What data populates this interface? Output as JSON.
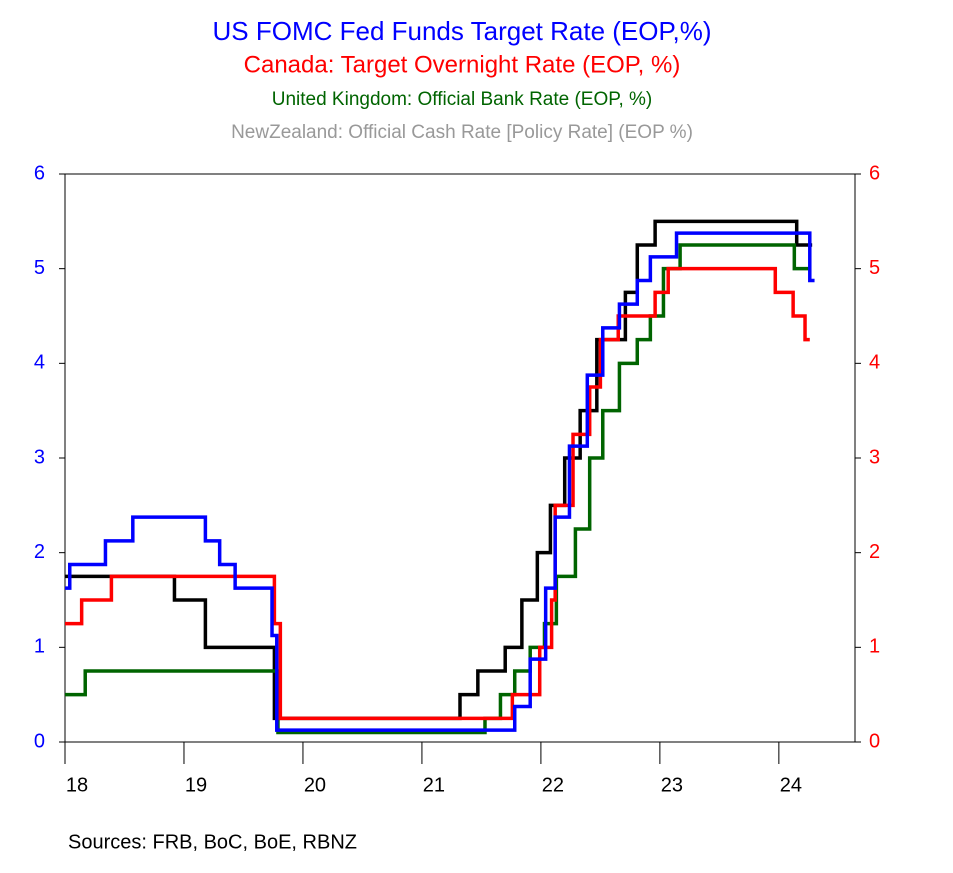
{
  "chart_data": {
    "type": "step-line",
    "source": "Sources:  FRB, BoC, BoE, RBNZ",
    "xlim": [
      2018,
      2024.64
    ],
    "xticks": [
      {
        "value": 2018,
        "label": "18"
      },
      {
        "value": 2019,
        "label": "19"
      },
      {
        "value": 2020,
        "label": "20"
      },
      {
        "value": 2021,
        "label": "21"
      },
      {
        "value": 2022,
        "label": "22"
      },
      {
        "value": 2023,
        "label": "23"
      },
      {
        "value": 2024,
        "label": "24"
      }
    ],
    "ylim": [
      0,
      6
    ],
    "yticks": [
      0,
      1,
      2,
      3,
      4,
      5,
      6
    ],
    "ytick_color": "#0000ff",
    "y2lim": [
      0,
      6
    ],
    "y2ticks": [
      0,
      1,
      2,
      3,
      4,
      5,
      6
    ],
    "y2tick_color": "#ff0000",
    "series": [
      {
        "name": "US FOMC Fed Funds Target Rate (EOP,%)",
        "color": "#0000ff",
        "label_color": "#0000ff",
        "x": [
          2018,
          2018.04,
          2018.34,
          2018.57,
          2019.18,
          2019.3,
          2019.43,
          2019.74,
          2019.78,
          2021.78,
          2021.91,
          2022.04,
          2022.12,
          2022.24,
          2022.39,
          2022.52,
          2022.66,
          2022.81,
          2022.92,
          2023.14,
          2024.26,
          2024.3
        ],
        "values": [
          1.625,
          1.875,
          2.125,
          2.375,
          2.125,
          1.875,
          1.625,
          1.125,
          0.125,
          0.375,
          0.875,
          1.625,
          2.375,
          3.125,
          3.875,
          4.375,
          4.625,
          4.875,
          5.125,
          5.375,
          4.875,
          4.875
        ]
      },
      {
        "name": "Canada: Target Overnight Rate (EOP, %)",
        "color": "#ff0000",
        "label_color": "#ff0000",
        "axis": "y2",
        "x": [
          2018,
          2018.14,
          2018.39,
          2019.76,
          2019.81,
          2021.76,
          2021.99,
          2022.09,
          2022.12,
          2022.27,
          2022.41,
          2022.5,
          2022.65,
          2022.96,
          2023.07,
          2023.97,
          2024.12,
          2024.22,
          2024.26
        ],
        "values": [
          1.25,
          1.5,
          1.75,
          1.25,
          0.25,
          0.5,
          1.0,
          1.5,
          2.5,
          3.25,
          3.75,
          4.25,
          4.5,
          4.75,
          5.0,
          4.75,
          4.5,
          4.25,
          4.25
        ]
      },
      {
        "name": "United Kingdom: Official Bank Rate (EOP, %)",
        "color": "#006400",
        "label_color": "#006400",
        "x": [
          2018,
          2018.17,
          2019.79,
          2021.53,
          2021.66,
          2021.78,
          2021.91,
          2022.03,
          2022.13,
          2022.29,
          2022.41,
          2022.52,
          2022.66,
          2022.81,
          2022.92,
          2023.03,
          2023.17,
          2024.13,
          2024.26
        ],
        "values": [
          0.5,
          0.75,
          0.1,
          0.25,
          0.5,
          0.75,
          1.0,
          1.25,
          1.75,
          2.25,
          3.0,
          3.5,
          4.0,
          4.25,
          4.5,
          5.0,
          5.25,
          5.0,
          5.0
        ]
      },
      {
        "name": "NewZealand: Official Cash Rate [Policy Rate] (EOP %)",
        "color": "#000000",
        "label_color": "#999999",
        "x": [
          2018,
          2018.92,
          2019.18,
          2019.76,
          2021.32,
          2021.47,
          2021.7,
          2021.84,
          2021.97,
          2022.08,
          2022.2,
          2022.33,
          2022.47,
          2022.71,
          2022.81,
          2022.96,
          2024.15,
          2024.28
        ],
        "values": [
          1.75,
          1.5,
          1.0,
          0.25,
          0.5,
          0.75,
          1.0,
          1.5,
          2.0,
          2.5,
          3.0,
          3.5,
          4.25,
          4.75,
          5.25,
          5.5,
          5.25,
          5.25
        ]
      }
    ]
  }
}
